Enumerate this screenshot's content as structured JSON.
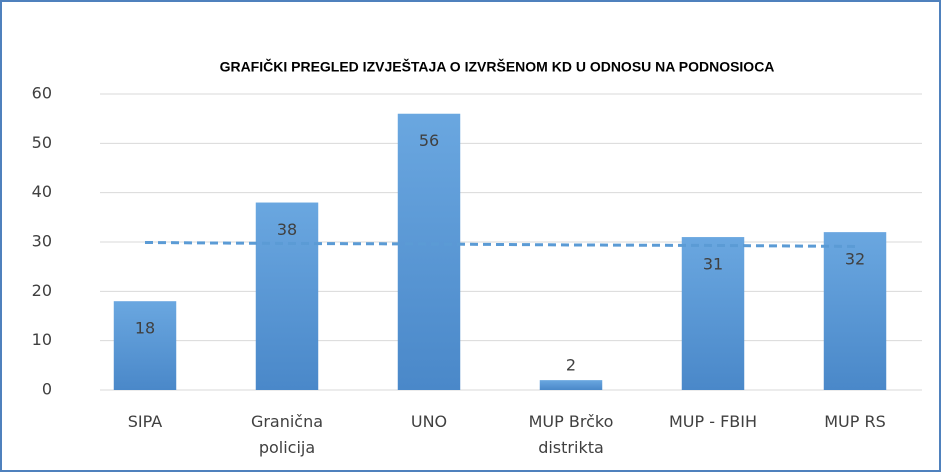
{
  "chart_data": {
    "type": "bar",
    "title": "GRAFIČKI PREGLED IZVJEŠTAJA O IZVRŠENOM KD  U ODNOSU NA PODNOSIOCA",
    "categories": [
      "SIPA",
      "Granična\npolicija",
      "UNO",
      "MUP Brčko\ndistrikta",
      "MUP - FBIH",
      "MUP RS"
    ],
    "values": [
      18,
      38,
      56,
      2,
      31,
      32
    ],
    "color": "#5b9bd5",
    "ylim": [
      0,
      60
    ],
    "yticks": [
      0,
      10,
      20,
      30,
      40,
      50,
      60
    ],
    "grid": true,
    "trendline": {
      "values": [
        29.9,
        29.7,
        29.6,
        29.4,
        29.3,
        29.1
      ],
      "color": "#5b9bd5",
      "dashed": true
    }
  }
}
